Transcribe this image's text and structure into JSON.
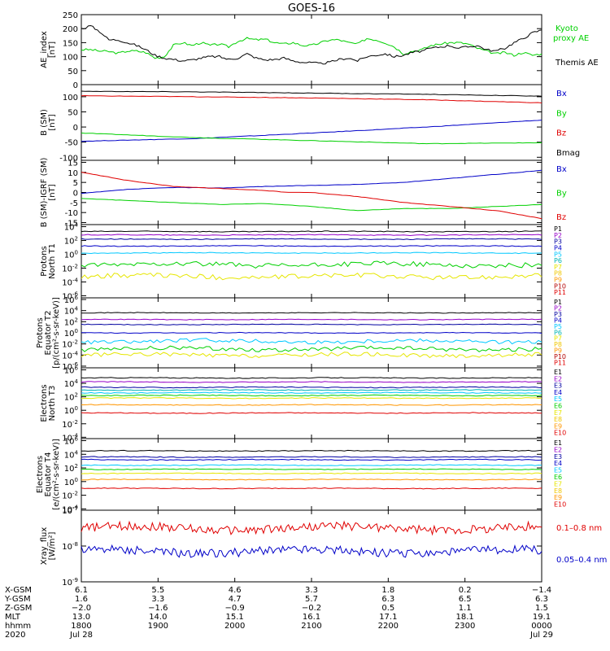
{
  "title": "GOES-16",
  "colors": {
    "black": "#000000",
    "red": "#e00000",
    "green": "#00d000",
    "blue": "#0000c8",
    "cyan": "#00c8ff",
    "teal": "#00b4b4",
    "yellow": "#e6e600",
    "gold": "#f0c800",
    "orange": "#ff9600",
    "purple": "#9600c8",
    "dkred": "#b40000",
    "navy": "#0000a0"
  },
  "chart_data": [
    {
      "type": "line",
      "id": "ae",
      "ylabel": "AE_index\n[nT]",
      "ylim": [
        0,
        250
      ],
      "yticks": [
        "0",
        "50",
        "100",
        "150",
        "200",
        "250"
      ],
      "series": [
        {
          "name": "Kyoto proxy AE",
          "color": "green",
          "x": [
            0,
            0.02,
            0.04,
            0.06,
            0.08,
            0.1,
            0.12,
            0.14,
            0.16,
            0.18,
            0.2,
            0.22,
            0.24,
            0.26,
            0.28,
            0.3,
            0.32,
            0.34,
            0.36,
            0.38,
            0.4,
            0.42,
            0.44,
            0.46,
            0.48,
            0.5,
            0.52,
            0.54,
            0.56,
            0.58,
            0.6,
            0.62,
            0.64,
            0.66,
            0.68,
            0.7,
            0.72,
            0.74,
            0.76,
            0.78,
            0.8,
            0.82,
            0.84,
            0.86,
            0.88,
            0.9,
            0.92,
            0.94,
            0.96,
            0.98,
            1.0
          ],
          "values": [
            125,
            125,
            120,
            118,
            112,
            120,
            120,
            115,
            95,
            100,
            140,
            150,
            140,
            150,
            140,
            145,
            135,
            155,
            165,
            160,
            162,
            150,
            145,
            150,
            140,
            140,
            150,
            160,
            160,
            150,
            145,
            165,
            160,
            150,
            135,
            110,
            120,
            125,
            140,
            145,
            150,
            150,
            145,
            130,
            120,
            110,
            115,
            105,
            115,
            105,
            110
          ]
        },
        {
          "name": "Themis AE",
          "color": "black",
          "x": [
            0,
            0.02,
            0.04,
            0.06,
            0.08,
            0.1,
            0.12,
            0.14,
            0.16,
            0.18,
            0.2,
            0.22,
            0.24,
            0.26,
            0.28,
            0.3,
            0.32,
            0.34,
            0.36,
            0.38,
            0.4,
            0.42,
            0.44,
            0.46,
            0.48,
            0.5,
            0.52,
            0.54,
            0.56,
            0.58,
            0.6,
            0.62,
            0.64,
            0.66,
            0.68,
            0.7,
            0.72,
            0.74,
            0.76,
            0.78,
            0.8,
            0.82,
            0.84,
            0.86,
            0.88,
            0.9,
            0.92,
            0.94,
            0.96,
            0.98,
            1.0
          ],
          "values": [
            200,
            210,
            190,
            160,
            160,
            150,
            140,
            125,
            105,
            95,
            90,
            85,
            88,
            95,
            100,
            100,
            90,
            95,
            110,
            95,
            88,
            90,
            95,
            85,
            80,
            78,
            75,
            80,
            90,
            95,
            85,
            100,
            105,
            110,
            100,
            105,
            115,
            120,
            130,
            135,
            140,
            130,
            135,
            140,
            125,
            120,
            130,
            150,
            165,
            185,
            195
          ]
        }
      ],
      "legend": [
        "Kyoto",
        "proxy AE",
        "Themis AE"
      ]
    },
    {
      "type": "line",
      "id": "bsm",
      "ylabel": "B (SM)\n[nT]",
      "ylim": [
        -110,
        140
      ],
      "ytickvals": [
        -100,
        -50,
        0,
        50,
        100
      ],
      "yticks": [
        "-100",
        "-50",
        "0",
        "50",
        "100"
      ],
      "series": [
        {
          "name": "Bx",
          "color": "blue",
          "x": [
            0,
            0.25,
            0.5,
            0.75,
            1.0
          ],
          "values": [
            -47,
            -38,
            -20,
            0,
            23
          ]
        },
        {
          "name": "By",
          "color": "green",
          "x": [
            0,
            0.25,
            0.5,
            0.75,
            1.0
          ],
          "values": [
            -20,
            -35,
            -45,
            -55,
            -52
          ]
        },
        {
          "name": "Bz",
          "color": "red",
          "x": [
            0,
            0.25,
            0.5,
            0.75,
            1.0
          ],
          "values": [
            103,
            100,
            96,
            90,
            80
          ]
        },
        {
          "name": "Bmag",
          "color": "black",
          "x": [
            0,
            0.25,
            0.5,
            0.75,
            1.0
          ],
          "values": [
            118,
            116,
            112,
            108,
            102
          ]
        }
      ]
    },
    {
      "type": "line",
      "id": "digrf",
      "ylabel": "B (SM)-IGRF (SM)\n[nT]",
      "ylim": [
        -16,
        16
      ],
      "ytickvals": [
        -15,
        -10,
        -5,
        0,
        5,
        10,
        15
      ],
      "yticks": [
        "-15",
        "-10",
        "-5",
        "0",
        "5",
        "10",
        "15"
      ],
      "series": [
        {
          "name": "Bx",
          "color": "blue",
          "x": [
            0,
            0.1,
            0.2,
            0.3,
            0.4,
            0.5,
            0.6,
            0.7,
            0.8,
            0.9,
            1.0
          ],
          "values": [
            -0.5,
            1.5,
            2.5,
            2.2,
            3,
            3.5,
            4,
            5,
            7,
            9,
            11
          ]
        },
        {
          "name": "By",
          "color": "green",
          "x": [
            0,
            0.1,
            0.2,
            0.3,
            0.4,
            0.5,
            0.6,
            0.7,
            0.8,
            0.9,
            1.0
          ],
          "values": [
            -3,
            -4,
            -5,
            -6,
            -5.5,
            -7,
            -9,
            -8,
            -8,
            -7,
            -6
          ]
        },
        {
          "name": "Bz",
          "color": "red",
          "x": [
            0,
            0.05,
            0.1,
            0.2,
            0.25,
            0.3,
            0.35,
            0.4,
            0.45,
            0.5,
            0.55,
            0.6,
            0.65,
            0.7,
            0.75,
            0.8,
            0.85,
            0.9,
            0.95,
            1.0
          ],
          "values": [
            10,
            8,
            6,
            3,
            2.5,
            2,
            1.5,
            1,
            0,
            0,
            -1,
            -2,
            -3.5,
            -5,
            -6,
            -7,
            -8,
            -9,
            -11,
            -13
          ]
        }
      ]
    },
    {
      "type": "line",
      "id": "pT1",
      "ylabel": "Protons\nNorth T1",
      "log": true,
      "ylim": [
        -6.3,
        4.3
      ],
      "ytickvals": [
        -6,
        -4,
        -2,
        0,
        2,
        4
      ],
      "yticks": [
        "10^-6",
        "10^-4",
        "10^-2",
        "10^0",
        "10^2",
        "10^4"
      ],
      "channels": [
        "P1",
        "P2",
        "P3",
        "P4",
        "P5",
        "P6",
        "P7",
        "P8",
        "P9",
        "P10",
        "P11"
      ],
      "channel_colors": [
        "black",
        "purple",
        "navy",
        "blue",
        "cyan",
        "teal",
        "yellow",
        "gold",
        "orange",
        "dkred",
        "red"
      ],
      "series": [
        {
          "name": "P1",
          "color": "black",
          "level": 3.3
        },
        {
          "name": "P2",
          "color": "purple",
          "level": 2.8
        },
        {
          "name": "P3",
          "color": "navy",
          "level": 2.2
        },
        {
          "name": "P4",
          "color": "blue",
          "level": 1.2
        },
        {
          "name": "P5",
          "color": "cyan",
          "level": 0.2
        },
        {
          "name": "P6",
          "color": "green",
          "level": -1.5
        },
        {
          "name": "P7",
          "color": "yellow",
          "level": -3.2
        }
      ]
    },
    {
      "type": "line",
      "id": "pT2",
      "ylabel": "Protons\nEquator T2\n[p/(cm²-s-sr-keV)]",
      "log": true,
      "ylim": [
        -6.3,
        6.3
      ],
      "ytickvals": [
        -6,
        -4,
        -2,
        0,
        2,
        4,
        6
      ],
      "yticks": [
        "10^-6",
        "10^-4",
        "10^-2",
        "10^0",
        "10^2",
        "10^4",
        "10^6"
      ],
      "channels": [
        "P1",
        "P2",
        "P3",
        "P4",
        "P5",
        "P6",
        "P7",
        "P8",
        "P9",
        "P10",
        "P11"
      ],
      "channel_colors": [
        "black",
        "purple",
        "navy",
        "blue",
        "cyan",
        "teal",
        "yellow",
        "gold",
        "orange",
        "dkred",
        "red"
      ],
      "series": [
        {
          "name": "P1",
          "color": "black",
          "level": 3.6
        },
        {
          "name": "P2",
          "color": "purple",
          "level": 2.4
        },
        {
          "name": "P3",
          "color": "navy",
          "level": 1.5
        },
        {
          "name": "P4",
          "color": "blue",
          "level": 0
        },
        {
          "name": "P5",
          "color": "cyan",
          "level": -1.5
        },
        {
          "name": "P6",
          "color": "green",
          "level": -2.9
        },
        {
          "name": "P7",
          "color": "yellow",
          "level": -4
        }
      ]
    },
    {
      "type": "line",
      "id": "eT3",
      "ylabel": "Electrons\nNorth T3",
      "log": true,
      "ylim": [
        -4.2,
        6.3
      ],
      "ytickvals": [
        -4,
        -2,
        0,
        2,
        4,
        6
      ],
      "yticks": [
        "10^-4",
        "10^-2",
        "10^0",
        "10^2",
        "10^4",
        "10^6"
      ],
      "channels": [
        "E1",
        "E2",
        "E3",
        "E4",
        "E5",
        "E6",
        "E7",
        "E8",
        "E9",
        "E10"
      ],
      "channel_colors": [
        "black",
        "purple",
        "navy",
        "blue",
        "cyan",
        "green",
        "yellow",
        "gold",
        "orange",
        "red"
      ],
      "series": [
        {
          "name": "E1",
          "color": "black",
          "level": 4.8
        },
        {
          "name": "E2",
          "color": "purple",
          "level": 4.2
        },
        {
          "name": "E3",
          "color": "navy",
          "level": 3.4
        },
        {
          "name": "E4",
          "color": "teal",
          "level": 3.0
        },
        {
          "name": "E5",
          "color": "cyan",
          "level": 2.6
        },
        {
          "name": "E6",
          "color": "green",
          "level": 2.2
        },
        {
          "name": "E7",
          "color": "yellow",
          "level": 1.8
        },
        {
          "name": "E8",
          "color": "orange",
          "level": 0.8
        },
        {
          "name": "E9",
          "color": "red",
          "level": -0.4
        }
      ]
    },
    {
      "type": "line",
      "id": "eT4",
      "ylabel": "Electrons\nEquator T4\n[e/(cm²-s-sr-keV)]",
      "log": true,
      "ylim": [
        -4.2,
        6.3
      ],
      "ytickvals": [
        -4,
        -2,
        0,
        2,
        4,
        6
      ],
      "yticks": [
        "10^-4",
        "10^-2",
        "10^0",
        "10^2",
        "10^4",
        "10^6"
      ],
      "channels": [
        "E1",
        "E2",
        "E3",
        "E4",
        "E5",
        "E6",
        "E7",
        "E8",
        "E9",
        "E10"
      ],
      "channel_colors": [
        "black",
        "purple",
        "navy",
        "blue",
        "cyan",
        "green",
        "yellow",
        "gold",
        "orange",
        "red"
      ],
      "series": [
        {
          "name": "E1",
          "color": "black",
          "level": 4.5
        },
        {
          "name": "E2",
          "color": "navy",
          "level": 3.6
        },
        {
          "name": "E3",
          "color": "blue",
          "level": 3.2
        },
        {
          "name": "E4",
          "color": "cyan",
          "level": 2.4
        },
        {
          "name": "E5",
          "color": "green",
          "level": 1.8
        },
        {
          "name": "E6",
          "color": "yellow",
          "level": 1.2
        },
        {
          "name": "E7",
          "color": "orange",
          "level": 0.3
        },
        {
          "name": "E8",
          "color": "red",
          "level": -1.0
        }
      ]
    },
    {
      "type": "line",
      "id": "xray",
      "ylabel": "Xray_flux\n[W/m²]",
      "log": true,
      "ylim": [
        -9,
        -7
      ],
      "ytickvals": [
        -9,
        -8,
        -7
      ],
      "yticks": [
        "10^-9",
        "10^-8",
        "10^-7"
      ],
      "series": [
        {
          "name": "0.1-0.8 nm",
          "color": "red",
          "level": -7.5
        },
        {
          "name": "0.05-0.4 nm",
          "color": "blue",
          "level": -8.15
        }
      ],
      "legend": [
        "0.1–0.8 nm",
        "0.05–0.4 nm"
      ]
    }
  ],
  "xaxis": {
    "row_labels": [
      "X-GSM",
      "Y-GSM",
      "Z-GSM",
      "MLT",
      "hhmm",
      "2020"
    ],
    "columns": [
      [
        "6.1",
        "1.6",
        "−2.0",
        "13.0",
        "1800",
        "Jul 28"
      ],
      [
        "5.5",
        "3.3",
        "−1.6",
        "14.0",
        "1900",
        ""
      ],
      [
        "4.6",
        "4.7",
        "−0.9",
        "15.1",
        "2000",
        ""
      ],
      [
        "3.3",
        "5.7",
        "−0.2",
        "16.1",
        "2100",
        ""
      ],
      [
        "1.8",
        "6.3",
        "0.5",
        "17.1",
        "2200",
        ""
      ],
      [
        "0.2",
        "6.5",
        "1.1",
        "18.1",
        "2300",
        ""
      ],
      [
        "−1.4",
        "6.3",
        "1.5",
        "19.1",
        "0000",
        "Jul 29"
      ]
    ]
  }
}
